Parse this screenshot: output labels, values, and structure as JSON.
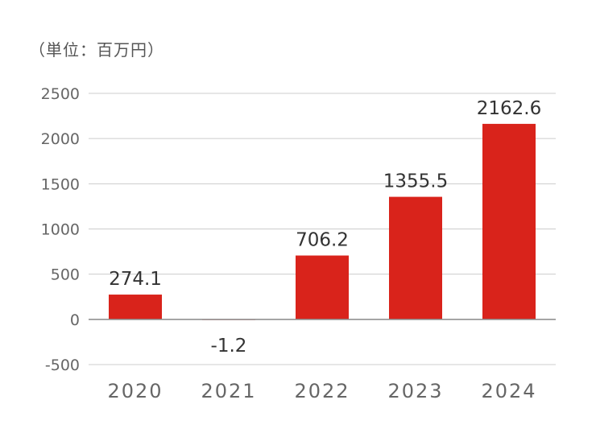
{
  "chart_data": {
    "type": "bar",
    "unit_label": "（単位：百万円）",
    "categories": [
      "2020",
      "2021",
      "2022",
      "2023",
      "2024"
    ],
    "values": [
      274.1,
      -1.2,
      706.2,
      1355.5,
      2162.6
    ],
    "value_labels": [
      "274.1",
      "-1.2",
      "706.2",
      "1355.5",
      "2162.6"
    ],
    "yticks": [
      2500,
      2000,
      1500,
      1000,
      500,
      0,
      -500
    ],
    "ylim": [
      -500,
      2500
    ],
    "grid": true,
    "bar_color": "#d9231b",
    "grid_color": "#cccccc",
    "axis_color": "#888888"
  }
}
